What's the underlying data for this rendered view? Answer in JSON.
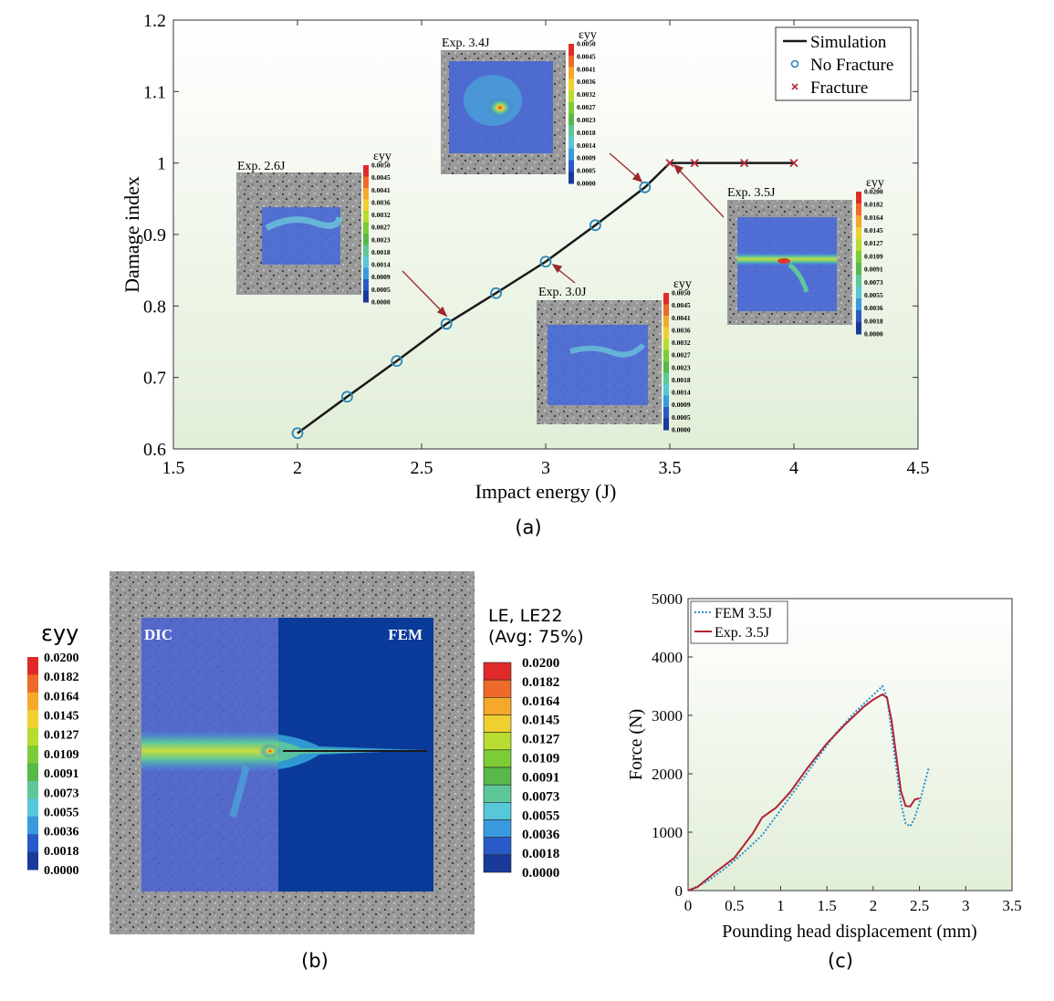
{
  "colors": {
    "sim_line": "#1a1a1a",
    "no_fracture": "#2a88b8",
    "fracture": "#b5283a",
    "fem_35": "#2a90c8",
    "exp_35": "#b02535",
    "plot_bg_top": "#ffffff",
    "plot_bg_bottom": "#e2eed8",
    "specimen_grey": "#8d8d8d",
    "strain_blue": "#2850c0"
  },
  "colorbar_colors": [
    "#1a3a9a",
    "#2a5ac8",
    "#3a9ae0",
    "#56c8d8",
    "#5ec79a",
    "#58b84a",
    "#7ccc38",
    "#b8dc30",
    "#f0d030",
    "#f5a82a",
    "#ee6a2a",
    "#e02a2a"
  ],
  "panel_a": {
    "caption": "(a)",
    "legend": [
      {
        "label": "Simulation",
        "kind": "line"
      },
      {
        "label": "No Fracture",
        "kind": "circle"
      },
      {
        "label": "Fracture",
        "kind": "cross"
      }
    ],
    "insets": [
      {
        "label": "Exp. 2.6J",
        "symbol": "εyy",
        "ticks": [
          "0.0050",
          "0.0045",
          "0.0041",
          "0.0036",
          "0.0032",
          "0.0027",
          "0.0023",
          "0.0018",
          "0.0014",
          "0.0009",
          "0.0005",
          "0.0000"
        ]
      },
      {
        "label": "Exp. 3.4J",
        "symbol": "εyy",
        "ticks": [
          "0.0050",
          "0.0045",
          "0.0041",
          "0.0036",
          "0.0032",
          "0.0027",
          "0.0023",
          "0.0018",
          "0.0014",
          "0.0009",
          "0.0005",
          "0.0000"
        ]
      },
      {
        "label": "Exp. 3.0J",
        "symbol": "εyy",
        "ticks": [
          "0.0050",
          "0.0045",
          "0.0041",
          "0.0036",
          "0.0032",
          "0.0027",
          "0.0023",
          "0.0018",
          "0.0014",
          "0.0009",
          "0.0005",
          "0.0000"
        ]
      },
      {
        "label": "Exp. 3.5J",
        "symbol": "εyy",
        "ticks": [
          "0.0200",
          "0.0182",
          "0.0164",
          "0.0145",
          "0.0127",
          "0.0109",
          "0.0091",
          "0.0073",
          "0.0055",
          "0.0036",
          "0.0018",
          "0.0000"
        ]
      }
    ]
  },
  "panel_b": {
    "caption": "(b)",
    "left_symbol": "εyy",
    "dic_label": "DIC",
    "fem_label": "FEM",
    "right_title_1": "LE, LE22",
    "right_title_2": "(Avg: 75%)",
    "ticks": [
      "0.0200",
      "0.0182",
      "0.0164",
      "0.0145",
      "0.0127",
      "0.0109",
      "0.0091",
      "0.0073",
      "0.0055",
      "0.0036",
      "0.0018",
      "0.0000"
    ]
  },
  "panel_c": {
    "caption": "(c)"
  },
  "chart_data": [
    {
      "type": "line",
      "xlabel": "Impact energy (J)",
      "ylabel": "Damage index",
      "xlim": [
        1.5,
        4.5
      ],
      "ylim": [
        0.6,
        1.2
      ],
      "xticks": [
        "1.5",
        "2",
        "2.5",
        "3",
        "3.5",
        "4",
        "4.5"
      ],
      "yticks": [
        "0.6",
        "0.7",
        "0.8",
        "0.9",
        "1",
        "1.1",
        "1.2"
      ],
      "legend_position": "top-right",
      "grid": false,
      "series": [
        {
          "name": "Simulation",
          "x": [
            2.0,
            2.2,
            2.4,
            2.6,
            2.8,
            3.0,
            3.2,
            3.4,
            3.5,
            3.6,
            3.8,
            4.0
          ],
          "y": [
            0.622,
            0.673,
            0.723,
            0.775,
            0.818,
            0.862,
            0.913,
            0.966,
            1.0,
            1.0,
            1.0,
            1.0
          ]
        },
        {
          "name": "No Fracture",
          "x": [
            2.0,
            2.2,
            2.4,
            2.6,
            2.8,
            3.0,
            3.2,
            3.4
          ],
          "y": [
            0.622,
            0.673,
            0.723,
            0.775,
            0.818,
            0.862,
            0.913,
            0.966
          ]
        },
        {
          "name": "Fracture",
          "x": [
            3.5,
            3.6,
            3.8,
            4.0
          ],
          "y": [
            1.0,
            1.0,
            1.0,
            1.0
          ]
        }
      ]
    },
    {
      "type": "line",
      "xlabel": "Pounding head displacement (mm)",
      "ylabel": "Force (N)",
      "xlim": [
        0,
        3.5
      ],
      "ylim": [
        0,
        5000
      ],
      "xticks": [
        "0",
        "0.5",
        "1",
        "1.5",
        "2",
        "2.5",
        "3",
        "3.5"
      ],
      "yticks": [
        "0",
        "1000",
        "2000",
        "3000",
        "4000",
        "5000"
      ],
      "legend_position": "top-left",
      "grid": false,
      "series": [
        {
          "name": "FEM 3.5J",
          "x": [
            0,
            0.2,
            0.4,
            0.6,
            0.8,
            1.0,
            1.2,
            1.4,
            1.6,
            1.8,
            2.0,
            2.1,
            2.15,
            2.2,
            2.3,
            2.35,
            2.4,
            2.45,
            2.5,
            2.55,
            2.6
          ],
          "y": [
            0,
            150,
            380,
            650,
            950,
            1380,
            1820,
            2270,
            2700,
            3050,
            3350,
            3500,
            3300,
            2700,
            1500,
            1150,
            1100,
            1250,
            1500,
            1800,
            2100
          ]
        },
        {
          "name": "Exp. 3.5J",
          "x": [
            0,
            0.1,
            0.3,
            0.5,
            0.7,
            0.8,
            0.95,
            1.1,
            1.3,
            1.5,
            1.7,
            1.9,
            2.0,
            2.1,
            2.15,
            2.2,
            2.3,
            2.35,
            2.4,
            2.45,
            2.5
          ],
          "y": [
            0,
            60,
            320,
            560,
            980,
            1250,
            1420,
            1680,
            2120,
            2520,
            2850,
            3150,
            3270,
            3360,
            3300,
            2900,
            1700,
            1450,
            1440,
            1560,
            1580
          ]
        }
      ]
    }
  ]
}
